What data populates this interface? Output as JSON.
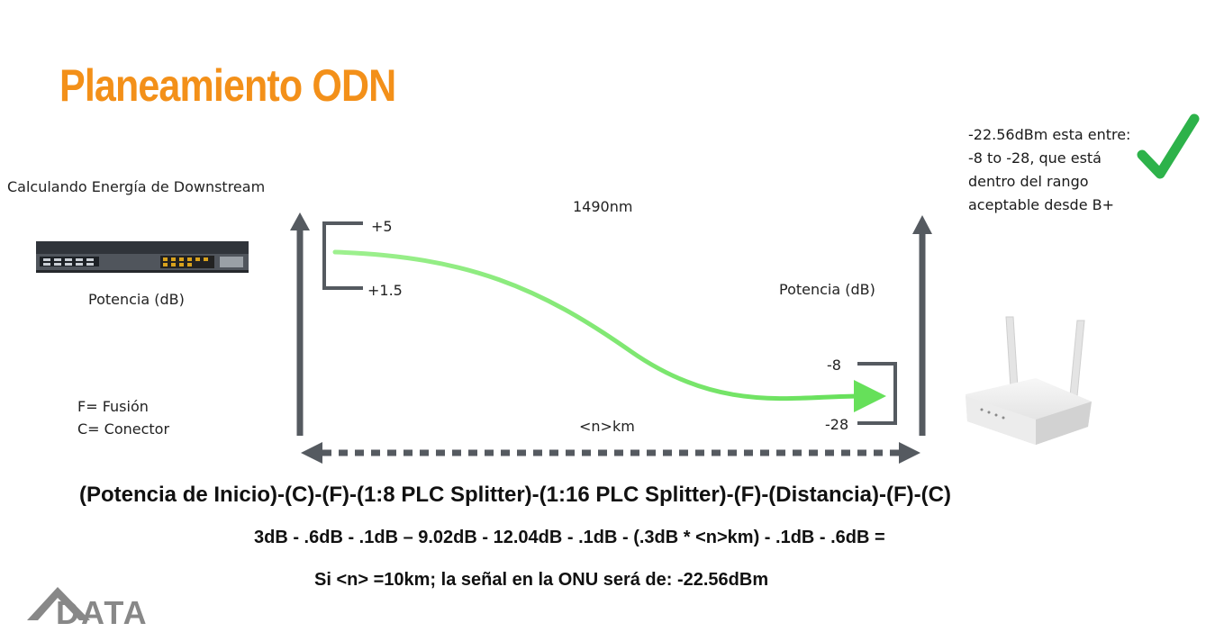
{
  "title": "Planeamiento ODN",
  "subtitle": "Calculando Energía de Downstream",
  "olt_power_label": "Potencia (dB)",
  "onu_power_label": "Potencia (dB)",
  "wavelength": "1490nm",
  "distance_label": "<n>km",
  "olt_range": {
    "high": "+5",
    "low": "+1.5"
  },
  "onu_range": {
    "high": "-8",
    "low": "-28"
  },
  "legend": {
    "fusion": "F= Fusión",
    "connector": "C= Conector"
  },
  "result_note": "-22.56dBm esta entre: -8 to -28, que está dentro del rango aceptable desde B+",
  "formula_line": "(Potencia de Inicio)-(C)-(F)-(1:8 PLC Splitter)-(1:16 PLC Splitter)-(F)-(Distancia)-(F)-(C)",
  "values_line": "3dB - .6dB - .1dB – 9.02dB - 12.04dB - .1dB - (.3dB * <n>km) - .1dB - .6dB =",
  "conclusion_line": "Si <n> =10km; la señal en la ONU será de: -22.56dBm",
  "logo_text": "DATA",
  "colors": {
    "title": "#f39019",
    "check": "#2db24a",
    "signal": "#66e05a",
    "arrow": "#555a60"
  }
}
